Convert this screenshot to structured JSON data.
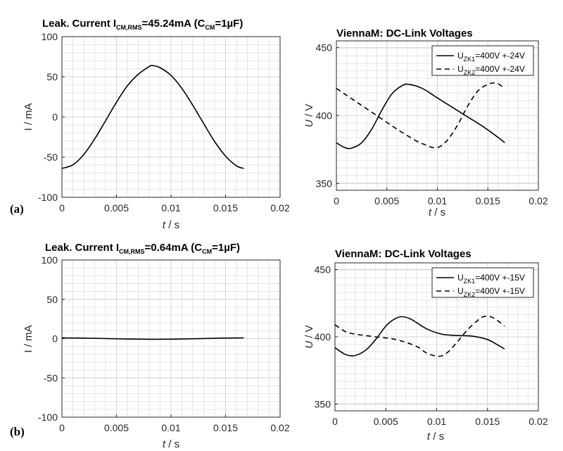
{
  "panels": [
    {
      "id": "a",
      "label": "(a)"
    },
    {
      "id": "b",
      "label": "(b)"
    }
  ],
  "chart_data": [
    {
      "id": "a-left",
      "type": "line",
      "title_pre": "Leak. Current  I",
      "title_sub": "CM,RMS",
      "title_mid": "=45.24mA (C",
      "title_sub2": "CM",
      "title_post": "=1µF)",
      "xlabel_italic": "t",
      "xlabel_rest": " / s",
      "ylabel": "I / mA",
      "xlim": [
        0,
        0.02
      ],
      "ylim": [
        -100,
        100
      ],
      "xticks": [
        0,
        0.005,
        0.01,
        0.015,
        0.02
      ],
      "yticks": [
        -100,
        -50,
        0,
        50,
        100
      ],
      "xticklabels": [
        "0",
        "0.005",
        "0.01",
        "0.015",
        "0.02"
      ],
      "yticklabels": [
        "-100",
        "-50",
        "0",
        "50",
        "100"
      ],
      "series": [
        {
          "name": "I_CM",
          "style": "solid",
          "x": [
            0,
            0.001,
            0.002,
            0.003,
            0.004,
            0.005,
            0.006,
            0.007,
            0.008,
            0.00833,
            0.009,
            0.01,
            0.011,
            0.012,
            0.013,
            0.014,
            0.015,
            0.016,
            0.01667
          ],
          "y": [
            -64,
            -59.6,
            -46.8,
            -27.4,
            -4.7,
            18.4,
            38.8,
            53.2,
            62.8,
            64,
            61.3,
            51.8,
            35.5,
            14.5,
            -8.3,
            -30.6,
            -48.7,
            -60.8,
            -64
          ]
        }
      ]
    },
    {
      "id": "a-right",
      "type": "line",
      "title": "ViennaM: DC-Link Voltages",
      "xlabel_italic": "t",
      "xlabel_rest": " / s",
      "ylabel_italic": "U",
      "ylabel_rest": " / V",
      "xlim": [
        0,
        0.02
      ],
      "ylim": [
        345,
        455
      ],
      "xticks": [
        0,
        0.005,
        0.01,
        0.015,
        0.02
      ],
      "yticks": [
        350,
        400,
        450
      ],
      "xticklabels": [
        "0",
        "0.005",
        "0.01",
        "0.015",
        "0.02"
      ],
      "yticklabels": [
        "350",
        "400",
        "450"
      ],
      "legend": [
        {
          "pre": "U",
          "sub": "ZK1",
          "post": "=400V +-24V",
          "style": "solid"
        },
        {
          "pre": "U",
          "sub": "ZK2",
          "post": "=400V +-24V",
          "style": "dashed"
        }
      ],
      "series": [
        {
          "name": "U_ZK1",
          "style": "solid",
          "x": [
            0,
            0.0008,
            0.0015,
            0.0025,
            0.0035,
            0.0045,
            0.0055,
            0.0065,
            0.0072,
            0.0085,
            0.01,
            0.0115,
            0.013,
            0.0145,
            0.016,
            0.01667
          ],
          "y": [
            380,
            376.5,
            376,
            380,
            390,
            404,
            416,
            422,
            423,
            420,
            413,
            406,
            399,
            392,
            384,
            380
          ]
        },
        {
          "name": "U_ZK2",
          "style": "dashed",
          "x": [
            0,
            0.002,
            0.004,
            0.006,
            0.008,
            0.009,
            0.0095,
            0.0102,
            0.011,
            0.012,
            0.013,
            0.014,
            0.015,
            0.0158,
            0.0163,
            0.01667
          ],
          "y": [
            420,
            410,
            400,
            390,
            381,
            378,
            376.5,
            377,
            382,
            393,
            407,
            418,
            423,
            424,
            422,
            420
          ]
        }
      ]
    },
    {
      "id": "b-left",
      "type": "line",
      "title_pre": "Leak. Current  I",
      "title_sub": "CM,RMS",
      "title_mid": "=0.64mA (C",
      "title_sub2": "CM",
      "title_post": "=1µF)",
      "xlabel_italic": "t",
      "xlabel_rest": " / s",
      "ylabel": "I / mA",
      "xlim": [
        0,
        0.02
      ],
      "ylim": [
        -100,
        100
      ],
      "xticks": [
        0,
        0.005,
        0.01,
        0.015,
        0.02
      ],
      "yticks": [
        -100,
        -50,
        0,
        50,
        100
      ],
      "xticklabels": [
        "0",
        "0.005",
        "0.01",
        "0.015",
        "0.02"
      ],
      "yticklabels": [
        "-100",
        "-50",
        "0",
        "50",
        "100"
      ],
      "series": [
        {
          "name": "I_CM",
          "style": "solid",
          "x": [
            0,
            0.002,
            0.004,
            0.006,
            0.008,
            0.0085,
            0.01,
            0.012,
            0.014,
            0.016,
            0.01667
          ],
          "y": [
            0.9,
            0.6,
            0.1,
            -0.5,
            -0.85,
            -0.9,
            -0.7,
            -0.2,
            0.4,
            0.85,
            0.9
          ]
        }
      ]
    },
    {
      "id": "b-right",
      "type": "line",
      "title": "ViennaM:  DC-Link Voltages",
      "xlabel_italic": "t",
      "xlabel_rest": " / s",
      "ylabel_italic": "U",
      "ylabel_rest": " / V",
      "xlim": [
        0,
        0.02
      ],
      "ylim": [
        345,
        455
      ],
      "xticks": [
        0,
        0.005,
        0.01,
        0.015,
        0.02
      ],
      "yticks": [
        350,
        400,
        450
      ],
      "xticklabels": [
        "0",
        "0.005",
        "0.01",
        "0.015",
        "0.02"
      ],
      "yticklabels": [
        "350",
        "400",
        "450"
      ],
      "legend": [
        {
          "pre": "U",
          "sub": "ZK1",
          "post": "=400V +-15V",
          "style": "solid"
        },
        {
          "pre": "U",
          "sub": "ZK2",
          "post": "=400V +-15V",
          "style": "dashed"
        }
      ],
      "series": [
        {
          "name": "U_ZK1",
          "style": "solid",
          "x": [
            0,
            0.001,
            0.0019,
            0.003,
            0.004,
            0.005,
            0.0058,
            0.0066,
            0.0075,
            0.009,
            0.0105,
            0.012,
            0.0135,
            0.015,
            0.016,
            0.01667
          ],
          "y": [
            392,
            387,
            386,
            390,
            398,
            408,
            413,
            415,
            413,
            406,
            402,
            401,
            400.5,
            398,
            394,
            391
          ]
        },
        {
          "name": "U_ZK2",
          "style": "dashed",
          "x": [
            0,
            0.001,
            0.002,
            0.004,
            0.006,
            0.008,
            0.009,
            0.0102,
            0.011,
            0.012,
            0.013,
            0.014,
            0.0146,
            0.0153,
            0.016,
            0.01667
          ],
          "y": [
            409,
            404,
            402,
            400,
            398,
            393,
            388,
            385.5,
            388,
            396,
            405,
            412,
            415,
            415,
            412,
            408
          ]
        }
      ]
    }
  ]
}
